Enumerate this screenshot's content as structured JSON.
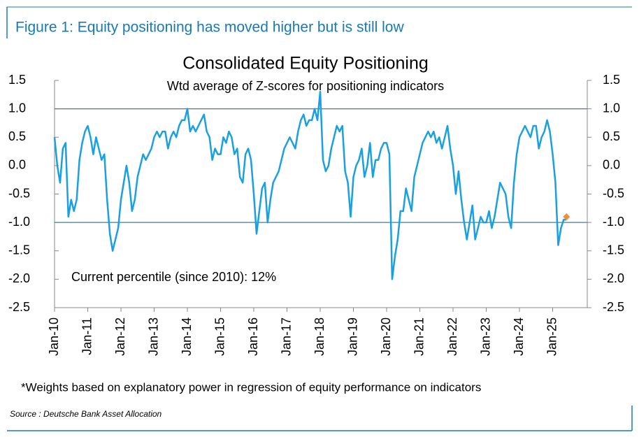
{
  "header": {
    "title": "Figure 1: Equity positioning has moved higher but is still low"
  },
  "chart_data": {
    "type": "line",
    "title": "Consolidated Equity Positioning",
    "subtitle": "Wtd average of Z-scores for positioning indicators",
    "annotation": "Current percentile (since 2010): 12%",
    "categories": [
      "Jan-10",
      null,
      null,
      null,
      null,
      null,
      null,
      null,
      null,
      null,
      null,
      null,
      "Jan-11",
      null,
      null,
      null,
      null,
      null,
      null,
      null,
      null,
      null,
      null,
      null,
      "Jan-12",
      null,
      null,
      null,
      null,
      null,
      null,
      null,
      null,
      null,
      null,
      null,
      "Jan-13",
      null,
      null,
      null,
      null,
      null,
      null,
      null,
      null,
      null,
      null,
      null,
      "Jan-14",
      null,
      null,
      null,
      null,
      null,
      null,
      null,
      null,
      null,
      null,
      null,
      "Jan-15",
      null,
      null,
      null,
      null,
      null,
      null,
      null,
      null,
      null,
      null,
      null,
      "Jan-16",
      null,
      null,
      null,
      null,
      null,
      null,
      null,
      null,
      null,
      null,
      null,
      "Jan-17",
      null,
      null,
      null,
      null,
      null,
      null,
      null,
      null,
      null,
      null,
      null,
      "Jan-18",
      null,
      null,
      null,
      null,
      null,
      null,
      null,
      null,
      null,
      null,
      null,
      "Jan-19",
      null,
      null,
      null,
      null,
      null,
      null,
      null,
      null,
      null,
      null,
      null,
      "Jan-20",
      null,
      null,
      null,
      null,
      null,
      null,
      null,
      null,
      null,
      null,
      null,
      "Jan-21",
      null,
      null,
      null,
      null,
      null,
      null,
      null,
      null,
      null,
      null,
      null,
      "Jan-22",
      null,
      null,
      null,
      null,
      null,
      null,
      null,
      null,
      null,
      null,
      null,
      "Jan-23",
      null,
      null,
      null,
      null,
      null,
      null,
      null,
      null,
      null,
      null,
      null,
      "Jan-24",
      null,
      null,
      null,
      null,
      null,
      null,
      null,
      null,
      null,
      null,
      null,
      "Jan-25",
      null,
      null,
      null,
      null,
      null
    ],
    "series": [
      {
        "name": "Consolidated Equity Positioning",
        "color": "#19a0e0",
        "values": [
          0.5,
          0.0,
          -0.3,
          0.3,
          0.4,
          -0.9,
          -0.6,
          -0.8,
          -0.6,
          0.1,
          0.4,
          0.6,
          0.7,
          0.5,
          0.2,
          0.5,
          0.3,
          0.1,
          0.2,
          -0.6,
          -1.2,
          -1.5,
          -1.3,
          -1.1,
          -0.6,
          -0.3,
          0.0,
          -0.3,
          -0.8,
          -0.6,
          -0.2,
          0.0,
          0.2,
          0.1,
          0.2,
          0.3,
          0.5,
          0.6,
          0.5,
          0.6,
          0.6,
          0.3,
          0.5,
          0.6,
          0.5,
          0.7,
          0.8,
          0.8,
          1.0,
          0.6,
          0.7,
          0.6,
          0.7,
          0.8,
          0.9,
          0.6,
          0.5,
          0.1,
          0.3,
          0.2,
          0.2,
          0.5,
          0.4,
          0.6,
          0.5,
          0.2,
          0.3,
          -0.2,
          -0.3,
          0.2,
          0.3,
          0.1,
          -0.5,
          -1.2,
          -0.8,
          -0.4,
          -0.3,
          -1.0,
          -0.6,
          -0.3,
          -0.2,
          -0.1,
          0.1,
          0.3,
          0.4,
          0.5,
          0.4,
          0.3,
          0.6,
          0.8,
          0.9,
          0.7,
          0.8,
          0.8,
          1.0,
          0.8,
          1.3,
          0.1,
          -0.1,
          0.0,
          0.3,
          0.5,
          0.7,
          0.6,
          0.7,
          -0.1,
          -0.3,
          -0.9,
          -0.2,
          0.0,
          0.1,
          0.3,
          -0.2,
          0.0,
          0.4,
          -0.2,
          0.1,
          0.1,
          0.3,
          0.4,
          0.4,
          0.2,
          -2.0,
          -1.6,
          -1.3,
          -0.8,
          -0.8,
          -0.4,
          -0.6,
          -0.8,
          -0.2,
          0.0,
          0.2,
          0.4,
          0.5,
          0.6,
          0.5,
          0.6,
          0.4,
          0.5,
          0.3,
          0.5,
          0.7,
          0.3,
          0.0,
          -0.5,
          -0.1,
          -0.6,
          -1.0,
          -1.3,
          -1.0,
          -0.7,
          -1.3,
          -1.1,
          -0.9,
          -1.0,
          -1.0,
          -0.8,
          -1.1,
          -0.9,
          -0.6,
          -0.3,
          -0.4,
          -0.5,
          -0.9,
          -1.1,
          -0.3,
          0.2,
          0.5,
          0.6,
          0.7,
          0.6,
          0.5,
          0.7,
          0.7,
          0.3,
          0.5,
          0.6,
          0.8,
          0.6,
          0.2,
          -0.3,
          -1.4,
          -1.1,
          -0.95,
          -0.95
        ]
      }
    ],
    "current_marker": {
      "value": -0.9,
      "color": "#f08c3c"
    },
    "reference_lines": [
      1,
      -1
    ],
    "ylim": [
      -2.5,
      1.5
    ],
    "yticks": [
      1.5,
      {
        "value": 1,
        "label": "1.0"
      },
      0.5,
      {
        "value": 0,
        "label": "0.0"
      },
      -0.5,
      {
        "value": -1,
        "label": "-1.0"
      },
      -1.5,
      {
        "value": -2,
        "label": "-2.0"
      },
      -2.5
    ],
    "y2lim": [
      -2.5,
      1.5
    ],
    "y2ticks": [
      1.5,
      {
        "value": 1,
        "label": "1.0"
      },
      0.5,
      {
        "value": 0,
        "label": "0.0"
      },
      -0.5,
      {
        "value": -1,
        "label": "-1.0"
      },
      -1.5,
      {
        "value": -2,
        "label": "-2.0"
      },
      -2.5
    ],
    "footnote": "*Weights based on explanatory power in regression of equity performance on indicators",
    "source": "Source : Deutsche Bank Asset Allocation"
  }
}
